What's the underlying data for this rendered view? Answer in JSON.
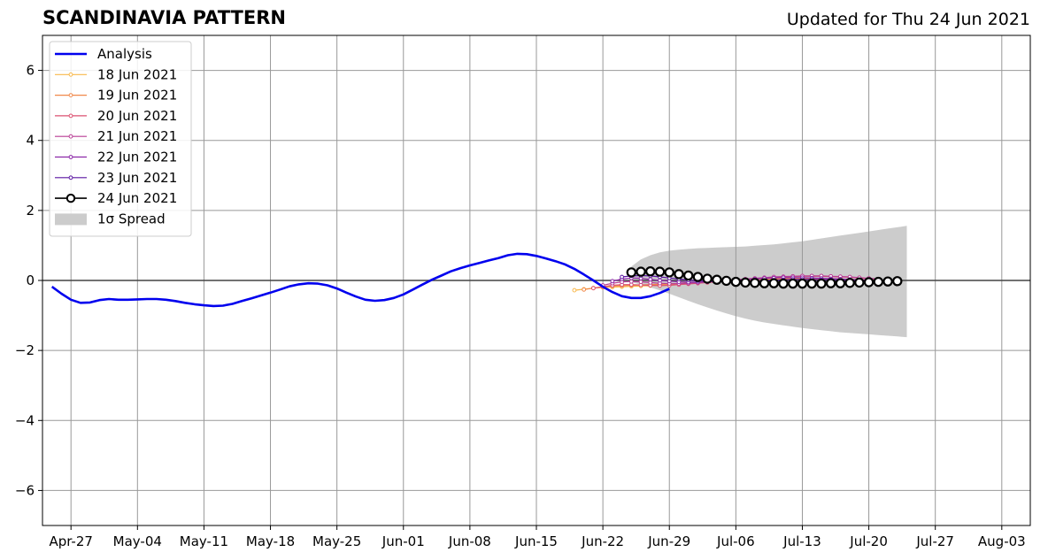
{
  "header": {
    "title": "SCANDINAVIA PATTERN",
    "updated": "Updated for Thu 24 Jun 2021"
  },
  "chart_data": {
    "type": "line",
    "title": "SCANDINAVIA PATTERN",
    "xlabel": "",
    "ylabel": "",
    "x_range": [
      "2021-04-24",
      "2021-08-06"
    ],
    "ylim": [
      -7,
      7
    ],
    "grid": true,
    "y_ticks": [
      -6,
      -4,
      -2,
      0,
      2,
      4,
      6
    ],
    "y_tick_labels": [
      "−6",
      "−4",
      "−2",
      "0",
      "2",
      "4",
      "6"
    ],
    "x_ticks": [
      "2021-04-27",
      "2021-05-04",
      "2021-05-11",
      "2021-05-18",
      "2021-05-25",
      "2021-06-01",
      "2021-06-08",
      "2021-06-15",
      "2021-06-22",
      "2021-06-29",
      "2021-07-06",
      "2021-07-13",
      "2021-07-20",
      "2021-07-27",
      "2021-08-03"
    ],
    "x_tick_labels": [
      "Apr-27",
      "May-04",
      "May-11",
      "May-18",
      "May-25",
      "Jun-01",
      "Jun-08",
      "Jun-15",
      "Jun-22",
      "Jun-29",
      "Jul-06",
      "Jul-13",
      "Jul-20",
      "Jul-27",
      "Aug-03"
    ],
    "legend_position": "top-left",
    "analysis": {
      "name": "Analysis",
      "color": "#0000ee",
      "start_date": "2021-04-25",
      "values": [
        -0.18,
        -0.38,
        -0.55,
        -0.64,
        -0.63,
        -0.56,
        -0.53,
        -0.55,
        -0.55,
        -0.54,
        -0.53,
        -0.53,
        -0.55,
        -0.59,
        -0.64,
        -0.68,
        -0.71,
        -0.73,
        -0.72,
        -0.67,
        -0.59,
        -0.51,
        -0.43,
        -0.35,
        -0.26,
        -0.17,
        -0.11,
        -0.08,
        -0.09,
        -0.14,
        -0.23,
        -0.35,
        -0.46,
        -0.55,
        -0.58,
        -0.56,
        -0.5,
        -0.4,
        -0.26,
        -0.12,
        0.02,
        0.14,
        0.26,
        0.35,
        0.43,
        0.5,
        0.57,
        0.64,
        0.72,
        0.76,
        0.75,
        0.7,
        0.63,
        0.55,
        0.46,
        0.33,
        0.17,
        0.0,
        -0.18,
        -0.33,
        -0.45,
        -0.5,
        -0.5,
        -0.45,
        -0.36,
        -0.24
      ]
    },
    "forecasts": [
      {
        "name": "18 Jun 2021",
        "color": "#f8b84a",
        "start_date": "2021-06-19",
        "values": [
          -0.28,
          -0.25,
          -0.22,
          -0.2,
          -0.19,
          -0.18,
          -0.17,
          -0.16,
          -0.15,
          -0.14,
          -0.12,
          -0.1,
          -0.08,
          -0.06,
          -0.04,
          -0.02,
          -0.01,
          0.0,
          0.01,
          0.02,
          0.03,
          0.03,
          0.04,
          0.04,
          0.04,
          0.04,
          0.03,
          0.03,
          0.02,
          0.01,
          0.0
        ]
      },
      {
        "name": "19 Jun 2021",
        "color": "#f0884a",
        "start_date": "2021-06-20",
        "values": [
          -0.26,
          -0.22,
          -0.18,
          -0.16,
          -0.15,
          -0.14,
          -0.13,
          -0.12,
          -0.11,
          -0.1,
          -0.09,
          -0.07,
          -0.05,
          -0.03,
          -0.01,
          0.01,
          0.02,
          0.03,
          0.04,
          0.05,
          0.05,
          0.06,
          0.06,
          0.06,
          0.05,
          0.05,
          0.04,
          0.04,
          0.03,
          0.02,
          0.01
        ]
      },
      {
        "name": "20 Jun 2021",
        "color": "#dc5070",
        "start_date": "2021-06-21",
        "values": [
          -0.22,
          -0.18,
          -0.14,
          -0.12,
          -0.12,
          -0.13,
          -0.14,
          -0.15,
          -0.14,
          -0.12,
          -0.1,
          -0.08,
          -0.06,
          -0.04,
          -0.02,
          0.0,
          0.02,
          0.04,
          0.06,
          0.08,
          0.1,
          0.11,
          0.12,
          0.12,
          0.12,
          0.11,
          0.1,
          0.09,
          0.07,
          0.05,
          0.03
        ]
      },
      {
        "name": "21 Jun 2021",
        "color": "#b83c94",
        "start_date": "2021-06-22",
        "values": [
          -0.14,
          -0.08,
          -0.04,
          -0.03,
          -0.04,
          -0.06,
          -0.08,
          -0.09,
          -0.09,
          -0.08,
          -0.06,
          -0.04,
          -0.02,
          0.0,
          0.02,
          0.04,
          0.06,
          0.08,
          0.1,
          0.11,
          0.12,
          0.13,
          0.13,
          0.13,
          0.12,
          0.11,
          0.1,
          0.08,
          0.06,
          0.04
        ]
      },
      {
        "name": "22 Jun 2021",
        "color": "#8c28a8",
        "start_date": "2021-06-23",
        "values": [
          -0.02,
          0.04,
          0.07,
          0.06,
          0.03,
          0.0,
          -0.02,
          -0.04,
          -0.05,
          -0.05,
          -0.04,
          -0.03,
          -0.02,
          0.0,
          0.02,
          0.04,
          0.06,
          0.07,
          0.08,
          0.08,
          0.08,
          0.07,
          0.06,
          0.05,
          0.04,
          0.03,
          0.02,
          0.01
        ]
      },
      {
        "name": "23 Jun 2021",
        "color": "#5a14a0",
        "start_date": "2021-06-24",
        "values": [
          0.1,
          0.13,
          0.14,
          0.13,
          0.1,
          0.07,
          0.04,
          0.01,
          -0.01,
          -0.02,
          -0.03,
          -0.03,
          -0.03,
          -0.02,
          -0.01,
          0.0,
          0.01,
          0.02,
          0.03,
          0.03,
          0.03,
          0.02,
          0.02,
          0.01,
          0.0,
          0.0
        ]
      },
      {
        "name": "24 Jun 2021",
        "color": "#000000",
        "start_date": "2021-06-25",
        "values": [
          0.23,
          0.25,
          0.26,
          0.25,
          0.23,
          0.18,
          0.14,
          0.1,
          0.05,
          0.02,
          -0.01,
          -0.04,
          -0.06,
          -0.07,
          -0.08,
          -0.08,
          -0.09,
          -0.09,
          -0.09,
          -0.09,
          -0.09,
          -0.08,
          -0.08,
          -0.07,
          -0.06,
          -0.05,
          -0.04,
          -0.03,
          -0.02
        ]
      }
    ],
    "spread": {
      "name": "1σ Spread",
      "color": "#cccccc",
      "start_date": "2021-06-25",
      "upper": [
        0.4,
        0.6,
        0.72,
        0.8,
        0.85,
        0.88,
        0.9,
        0.92,
        0.93,
        0.94,
        0.95,
        0.96,
        0.97,
        0.99,
        1.01,
        1.03,
        1.06,
        1.09,
        1.12,
        1.16,
        1.2,
        1.24,
        1.28,
        1.32,
        1.36,
        1.4,
        1.44,
        1.48,
        1.52,
        1.56
      ],
      "lower": [
        -0.05,
        -0.12,
        -0.2,
        -0.28,
        -0.38,
        -0.48,
        -0.58,
        -0.68,
        -0.77,
        -0.86,
        -0.94,
        -1.02,
        -1.09,
        -1.15,
        -1.2,
        -1.24,
        -1.28,
        -1.32,
        -1.36,
        -1.39,
        -1.42,
        -1.45,
        -1.48,
        -1.5,
        -1.52,
        -1.54,
        -1.56,
        -1.58,
        -1.6,
        -1.62
      ]
    }
  }
}
